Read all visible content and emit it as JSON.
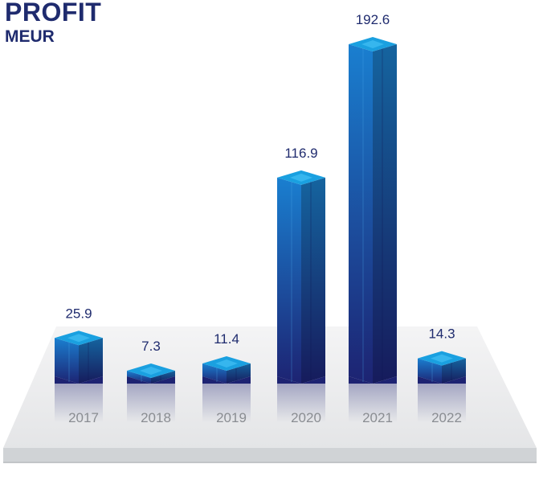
{
  "title": "PROFIT",
  "unit": "MEUR",
  "chart_data": {
    "type": "bar",
    "title": "PROFIT",
    "subtitle": "MEUR",
    "categories": [
      "2017",
      "2018",
      "2019",
      "2020",
      "2021",
      "2022"
    ],
    "values": [
      25.9,
      7.3,
      11.4,
      116.9,
      192.6,
      14.3
    ],
    "value_labels": [
      "25.9",
      "7.3",
      "11.4",
      "116.9",
      "192.6",
      "14.3"
    ],
    "xlabel": "",
    "ylabel": "",
    "ylim": [
      0,
      192.6
    ],
    "grid": false,
    "colors": {
      "bar_front_top": "#1a7fd0",
      "bar_front_bottom": "#1d2372",
      "bar_top": "#1aa0e0",
      "value_text": "#1f2b6e",
      "year_text": "#8a8d92"
    }
  }
}
